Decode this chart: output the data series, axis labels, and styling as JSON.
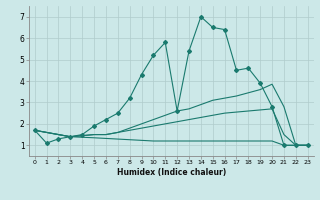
{
  "xlabel": "Humidex (Indice chaleur)",
  "ylabel": "",
  "bg_color": "#cce8e8",
  "line_color": "#1a7a6e",
  "grid_color_major": "#b0cccc",
  "grid_color_minor": "#b0cccc",
  "xlim": [
    -0.5,
    23.5
  ],
  "ylim": [
    0.5,
    7.5
  ],
  "xticks": [
    0,
    1,
    2,
    3,
    4,
    5,
    6,
    7,
    8,
    9,
    10,
    11,
    12,
    13,
    14,
    15,
    16,
    17,
    18,
    19,
    20,
    21,
    22,
    23
  ],
  "yticks": [
    1,
    2,
    3,
    4,
    5,
    6,
    7
  ],
  "lines": [
    {
      "x": [
        0,
        1,
        2,
        3,
        4,
        5,
        6,
        7,
        8,
        9,
        10,
        11,
        12,
        13,
        14,
        15,
        16,
        17,
        18,
        19,
        20,
        21,
        22,
        23
      ],
      "y": [
        1.7,
        1.1,
        1.3,
        1.4,
        1.5,
        1.9,
        2.2,
        2.5,
        3.2,
        4.3,
        5.2,
        5.8,
        2.6,
        5.4,
        7.0,
        6.5,
        6.4,
        4.5,
        4.6,
        3.9,
        2.8,
        1.0,
        1.0,
        1.0
      ],
      "marker": "D",
      "markersize": 2.0,
      "linewidth": 0.8
    },
    {
      "x": [
        0,
        3,
        5,
        6,
        7,
        8,
        9,
        10,
        11,
        12,
        13,
        14,
        15,
        16,
        17,
        18,
        19,
        20,
        21,
        22,
        23
      ],
      "y": [
        1.7,
        1.4,
        1.5,
        1.5,
        1.6,
        1.8,
        2.0,
        2.2,
        2.4,
        2.6,
        2.7,
        2.9,
        3.1,
        3.2,
        3.3,
        3.45,
        3.6,
        3.85,
        2.8,
        1.0,
        1.0
      ],
      "marker": null,
      "markersize": 0,
      "linewidth": 0.8
    },
    {
      "x": [
        0,
        3,
        5,
        6,
        7,
        8,
        9,
        10,
        11,
        12,
        13,
        14,
        15,
        16,
        17,
        18,
        19,
        20,
        21,
        22,
        23
      ],
      "y": [
        1.7,
        1.4,
        1.5,
        1.5,
        1.6,
        1.7,
        1.8,
        1.9,
        2.0,
        2.1,
        2.2,
        2.3,
        2.4,
        2.5,
        2.55,
        2.6,
        2.65,
        2.7,
        1.5,
        1.0,
        1.0
      ],
      "marker": null,
      "markersize": 0,
      "linewidth": 0.8
    },
    {
      "x": [
        0,
        3,
        5,
        10,
        14,
        20,
        21,
        22,
        23
      ],
      "y": [
        1.7,
        1.4,
        1.35,
        1.2,
        1.2,
        1.2,
        1.0,
        1.0,
        1.0
      ],
      "marker": null,
      "markersize": 0,
      "linewidth": 0.8
    }
  ]
}
